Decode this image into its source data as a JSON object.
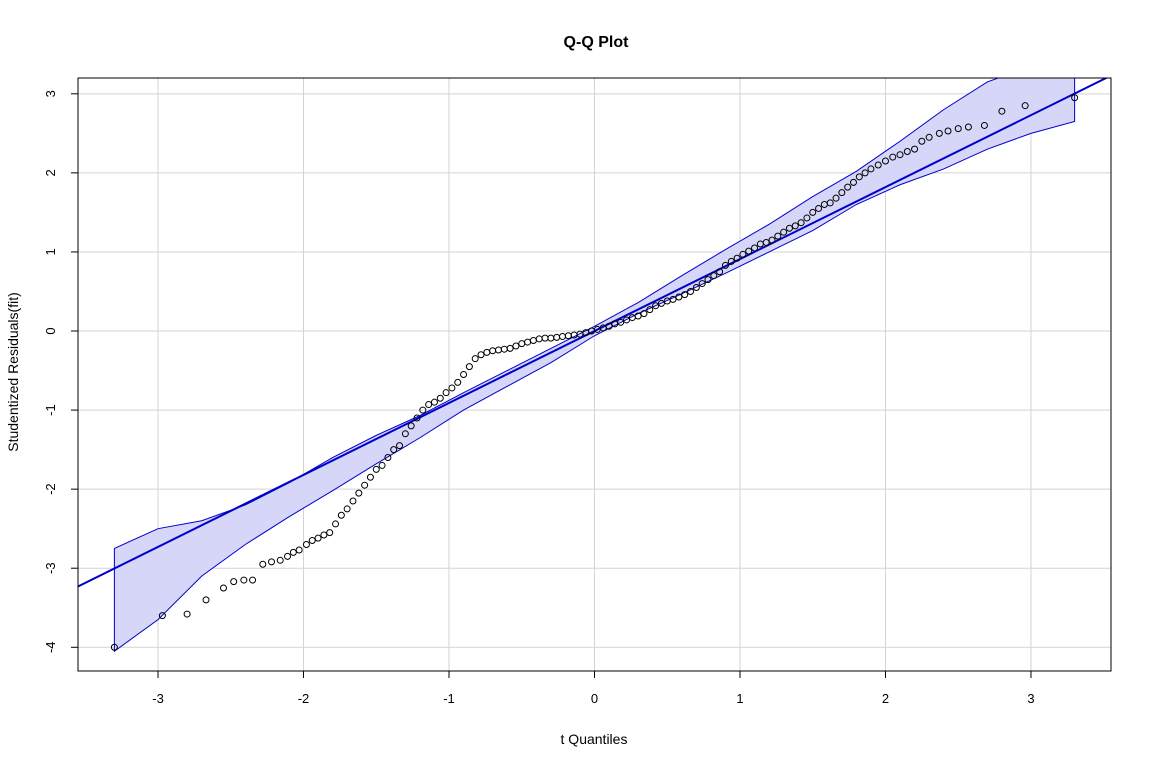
{
  "chart_data": {
    "type": "scatter",
    "title": "Q-Q Plot",
    "xlabel": "t Quantiles",
    "ylabel": "Studentized Residuals(fit)",
    "xlim": [
      -3.55,
      3.55
    ],
    "ylim": [
      -4.3,
      3.2
    ],
    "xticks": [
      -3,
      -2,
      -1,
      0,
      1,
      2,
      3
    ],
    "yticks": [
      -4,
      -3,
      -2,
      -1,
      0,
      1,
      2,
      3
    ],
    "grid": true,
    "colors": {
      "line": "#0000cc",
      "band_fill": "#d6d6f8",
      "band_stroke": "#0000cc",
      "points": "#000000",
      "grid": "#d3d3d3"
    },
    "reference_line": {
      "intercept": 0.0,
      "slope": 0.91
    },
    "confidence_band": {
      "x": [
        -3.3,
        -3.0,
        -2.7,
        -2.4,
        -2.1,
        -1.8,
        -1.5,
        -1.2,
        -0.9,
        -0.6,
        -0.3,
        0.0,
        0.3,
        0.6,
        0.9,
        1.2,
        1.5,
        1.8,
        2.1,
        2.4,
        2.7,
        3.0,
        3.3
      ],
      "upper": [
        -2.75,
        -2.5,
        -2.4,
        -2.2,
        -1.92,
        -1.6,
        -1.32,
        -1.07,
        -0.78,
        -0.5,
        -0.22,
        0.06,
        0.36,
        0.7,
        1.03,
        1.35,
        1.7,
        2.02,
        2.4,
        2.8,
        3.15,
        3.35,
        3.3
      ],
      "lower": [
        -4.05,
        -3.65,
        -3.1,
        -2.7,
        -2.35,
        -2.02,
        -1.68,
        -1.35,
        -1.0,
        -0.7,
        -0.4,
        -0.06,
        0.22,
        0.47,
        0.73,
        1.0,
        1.27,
        1.6,
        1.85,
        2.05,
        2.3,
        2.5,
        2.65
      ]
    },
    "points": {
      "x": [
        -3.3,
        -2.97,
        -2.8,
        -2.67,
        -2.55,
        -2.48,
        -2.41,
        -2.35,
        -2.28,
        -2.22,
        -2.16,
        -2.11,
        -2.07,
        -2.03,
        -1.98,
        -1.94,
        -1.9,
        -1.86,
        -1.82,
        -1.78,
        -1.74,
        -1.7,
        -1.66,
        -1.62,
        -1.58,
        -1.54,
        -1.5,
        -1.46,
        -1.42,
        -1.38,
        -1.34,
        -1.3,
        -1.26,
        -1.22,
        -1.18,
        -1.14,
        -1.1,
        -1.06,
        -1.02,
        -0.98,
        -0.94,
        -0.9,
        -0.86,
        -0.82,
        -0.78,
        -0.74,
        -0.7,
        -0.66,
        -0.62,
        -0.58,
        -0.54,
        -0.5,
        -0.46,
        -0.42,
        -0.38,
        -0.34,
        -0.3,
        -0.26,
        -0.22,
        -0.18,
        -0.14,
        -0.1,
        -0.06,
        -0.02,
        0.02,
        0.06,
        0.1,
        0.14,
        0.18,
        0.22,
        0.26,
        0.3,
        0.34,
        0.38,
        0.42,
        0.46,
        0.5,
        0.54,
        0.58,
        0.62,
        0.66,
        0.7,
        0.74,
        0.78,
        0.82,
        0.86,
        0.9,
        0.94,
        0.98,
        1.02,
        1.06,
        1.1,
        1.14,
        1.18,
        1.22,
        1.26,
        1.3,
        1.34,
        1.38,
        1.42,
        1.46,
        1.5,
        1.54,
        1.58,
        1.62,
        1.66,
        1.7,
        1.74,
        1.78,
        1.82,
        1.86,
        1.9,
        1.95,
        2.0,
        2.05,
        2.1,
        2.15,
        2.2,
        2.25,
        2.3,
        2.37,
        2.43,
        2.5,
        2.57,
        2.68,
        2.8,
        2.96,
        3.3
      ],
      "y": [
        -4.0,
        -3.6,
        -3.58,
        -3.4,
        -3.25,
        -3.17,
        -3.15,
        -3.15,
        -2.95,
        -2.92,
        -2.9,
        -2.85,
        -2.8,
        -2.77,
        -2.7,
        -2.65,
        -2.62,
        -2.58,
        -2.55,
        -2.44,
        -2.33,
        -2.25,
        -2.15,
        -2.05,
        -1.95,
        -1.85,
        -1.75,
        -1.7,
        -1.6,
        -1.5,
        -1.45,
        -1.3,
        -1.2,
        -1.1,
        -1.0,
        -0.93,
        -0.9,
        -0.85,
        -0.78,
        -0.72,
        -0.65,
        -0.55,
        -0.45,
        -0.35,
        -0.3,
        -0.27,
        -0.25,
        -0.24,
        -0.23,
        -0.22,
        -0.19,
        -0.16,
        -0.14,
        -0.12,
        -0.1,
        -0.09,
        -0.09,
        -0.08,
        -0.07,
        -0.06,
        -0.05,
        -0.04,
        -0.02,
        0.0,
        0.02,
        0.04,
        0.06,
        0.09,
        0.11,
        0.14,
        0.17,
        0.19,
        0.22,
        0.27,
        0.32,
        0.35,
        0.38,
        0.4,
        0.43,
        0.46,
        0.5,
        0.55,
        0.6,
        0.65,
        0.7,
        0.75,
        0.83,
        0.88,
        0.92,
        0.97,
        1.01,
        1.05,
        1.1,
        1.12,
        1.15,
        1.2,
        1.25,
        1.3,
        1.33,
        1.37,
        1.43,
        1.5,
        1.55,
        1.6,
        1.62,
        1.68,
        1.75,
        1.82,
        1.88,
        1.95,
        2.0,
        2.05,
        2.1,
        2.15,
        2.2,
        2.23,
        2.27,
        2.3,
        2.4,
        2.45,
        2.5,
        2.53,
        2.56,
        2.58,
        2.6,
        2.78,
        2.85,
        2.95
      ]
    }
  }
}
